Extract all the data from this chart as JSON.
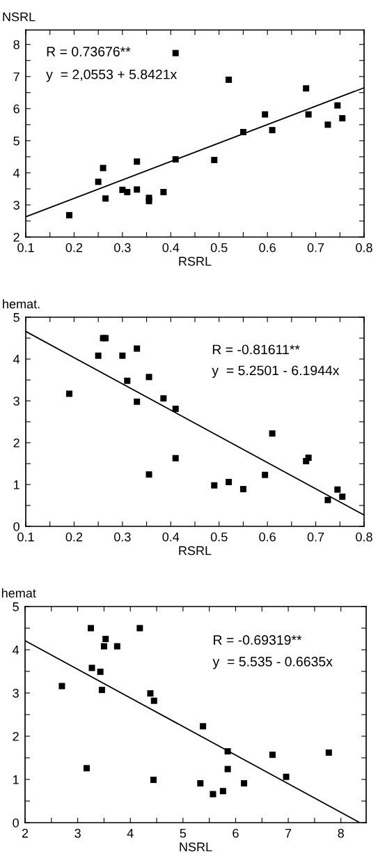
{
  "chart_data": [
    {
      "type": "scatter",
      "ylabel": "NSRL",
      "xlabel": "RSRL",
      "annotations": [
        "R = 0.73676**",
        "y  = 2,0553 + 5.8421x"
      ],
      "grid": false,
      "legend": false,
      "xlim": [
        0.1,
        0.8
      ],
      "ylim": [
        2,
        8.45
      ],
      "xticks": [
        0.1,
        {
          "value": 0.15,
          "label": null
        },
        0.2,
        {
          "value": 0.25,
          "label": null
        },
        0.3,
        {
          "value": 0.35,
          "label": null
        },
        0.4,
        {
          "value": 0.45,
          "label": null
        },
        0.5,
        {
          "value": 0.55,
          "label": null
        },
        0.6,
        {
          "value": 0.65,
          "label": null
        },
        0.7,
        {
          "value": 0.75,
          "label": null
        },
        0.8
      ],
      "yticks": [
        2,
        {
          "value": 2.5,
          "label": null
        },
        3,
        {
          "value": 3.5,
          "label": null
        },
        4,
        {
          "value": 4.5,
          "label": null
        },
        5,
        {
          "value": 5.5,
          "label": null
        },
        6,
        {
          "value": 6.5,
          "label": null
        },
        7,
        {
          "value": 7.5,
          "label": null
        },
        8
      ],
      "series": [
        {
          "marker": "square",
          "color": "#000000",
          "x": [
            0.19,
            0.25,
            0.26,
            0.265,
            0.3,
            0.31,
            0.33,
            0.33,
            0.355,
            0.355,
            0.385,
            0.41,
            0.41,
            0.49,
            0.52,
            0.55,
            0.595,
            0.61,
            0.68,
            0.685,
            0.725,
            0.745,
            0.755
          ],
          "values": [
            2.68,
            3.72,
            4.15,
            3.2,
            3.47,
            3.4,
            4.35,
            3.48,
            3.22,
            3.12,
            3.4,
            7.73,
            4.42,
            4.4,
            6.9,
            5.27,
            5.82,
            5.33,
            6.63,
            5.82,
            5.5,
            6.1,
            5.7
          ]
        },
        {
          "type": "line",
          "color": "#000000",
          "x": [
            0.1,
            0.8
          ],
          "values": [
            2.63,
            6.65
          ]
        }
      ]
    },
    {
      "type": "scatter",
      "ylabel": "hemat.",
      "xlabel": "RSRL",
      "annotations": [
        "R = -0.81611**",
        "y  = 5.2501 - 6.1944x"
      ],
      "grid": false,
      "legend": false,
      "xlim": [
        0.1,
        0.8
      ],
      "ylim": [
        0,
        5
      ],
      "xticks": [
        0.1,
        {
          "value": 0.15,
          "label": null
        },
        0.2,
        {
          "value": 0.25,
          "label": null
        },
        0.3,
        {
          "value": 0.35,
          "label": null
        },
        0.4,
        {
          "value": 0.45,
          "label": null
        },
        0.5,
        {
          "value": 0.55,
          "label": null
        },
        0.6,
        {
          "value": 0.65,
          "label": null
        },
        0.7,
        {
          "value": 0.75,
          "label": null
        },
        0.8
      ],
      "yticks": [
        0,
        {
          "value": 0.5,
          "label": null
        },
        1,
        {
          "value": 1.5,
          "label": null
        },
        2,
        {
          "value": 2.5,
          "label": null
        },
        3,
        {
          "value": 3.5,
          "label": null
        },
        4,
        {
          "value": 4.5,
          "label": null
        },
        5
      ],
      "series": [
        {
          "marker": "square",
          "color": "#000000",
          "x": [
            0.19,
            0.25,
            0.26,
            0.265,
            0.3,
            0.31,
            0.33,
            0.33,
            0.355,
            0.355,
            0.385,
            0.41,
            0.41,
            0.49,
            0.52,
            0.55,
            0.595,
            0.61,
            0.68,
            0.685,
            0.725,
            0.745,
            0.755
          ],
          "values": [
            3.17,
            4.08,
            4.5,
            4.5,
            4.08,
            3.48,
            4.25,
            2.98,
            3.57,
            1.24,
            3.06,
            2.81,
            1.63,
            0.98,
            1.06,
            0.89,
            1.23,
            2.22,
            1.56,
            1.64,
            0.63,
            0.88,
            0.71
          ]
        },
        {
          "type": "line",
          "color": "#000000",
          "x": [
            0.1,
            0.8
          ],
          "values": [
            4.66,
            0.27
          ]
        }
      ]
    },
    {
      "type": "scatter",
      "ylabel": "hemat",
      "xlabel": "NSRL",
      "annotations": [
        "R = -0.69319**",
        "y  = 5.535 - 0.6635x"
      ],
      "grid": false,
      "legend": false,
      "xlim": [
        2,
        8.48
      ],
      "ylim": [
        0,
        5
      ],
      "xticks": [
        2,
        {
          "value": 2.5,
          "label": null
        },
        3,
        {
          "value": 3.5,
          "label": null
        },
        4,
        {
          "value": 4.5,
          "label": null
        },
        5,
        {
          "value": 5.5,
          "label": null
        },
        6,
        {
          "value": 6.5,
          "label": null
        },
        7,
        {
          "value": 7.5,
          "label": null
        },
        8
      ],
      "yticks": [
        0,
        {
          "value": 0.5,
          "label": null
        },
        1,
        {
          "value": 1.5,
          "label": null
        },
        2,
        {
          "value": 2.5,
          "label": null
        },
        3,
        {
          "value": 3.5,
          "label": null
        },
        4,
        {
          "value": 4.5,
          "label": null
        },
        5
      ],
      "series": [
        {
          "marker": "square",
          "color": "#000000",
          "x": [
            2.7,
            3.17,
            3.25,
            3.27,
            3.43,
            3.46,
            3.5,
            3.53,
            3.75,
            4.18,
            4.38,
            4.45,
            4.44,
            5.33,
            5.38,
            5.57,
            5.76,
            5.85,
            5.85,
            6.16,
            6.7,
            6.96,
            7.77
          ],
          "values": [
            3.16,
            1.26,
            4.5,
            3.58,
            3.49,
            3.07,
            4.08,
            4.25,
            4.08,
            4.5,
            2.99,
            2.82,
            0.99,
            0.91,
            2.23,
            0.66,
            0.73,
            1.65,
            1.24,
            0.91,
            1.57,
            1.06,
            1.62
          ]
        },
        {
          "type": "line",
          "color": "#000000",
          "x": [
            2,
            8.36
          ],
          "values": [
            4.21,
            0
          ]
        }
      ]
    }
  ]
}
